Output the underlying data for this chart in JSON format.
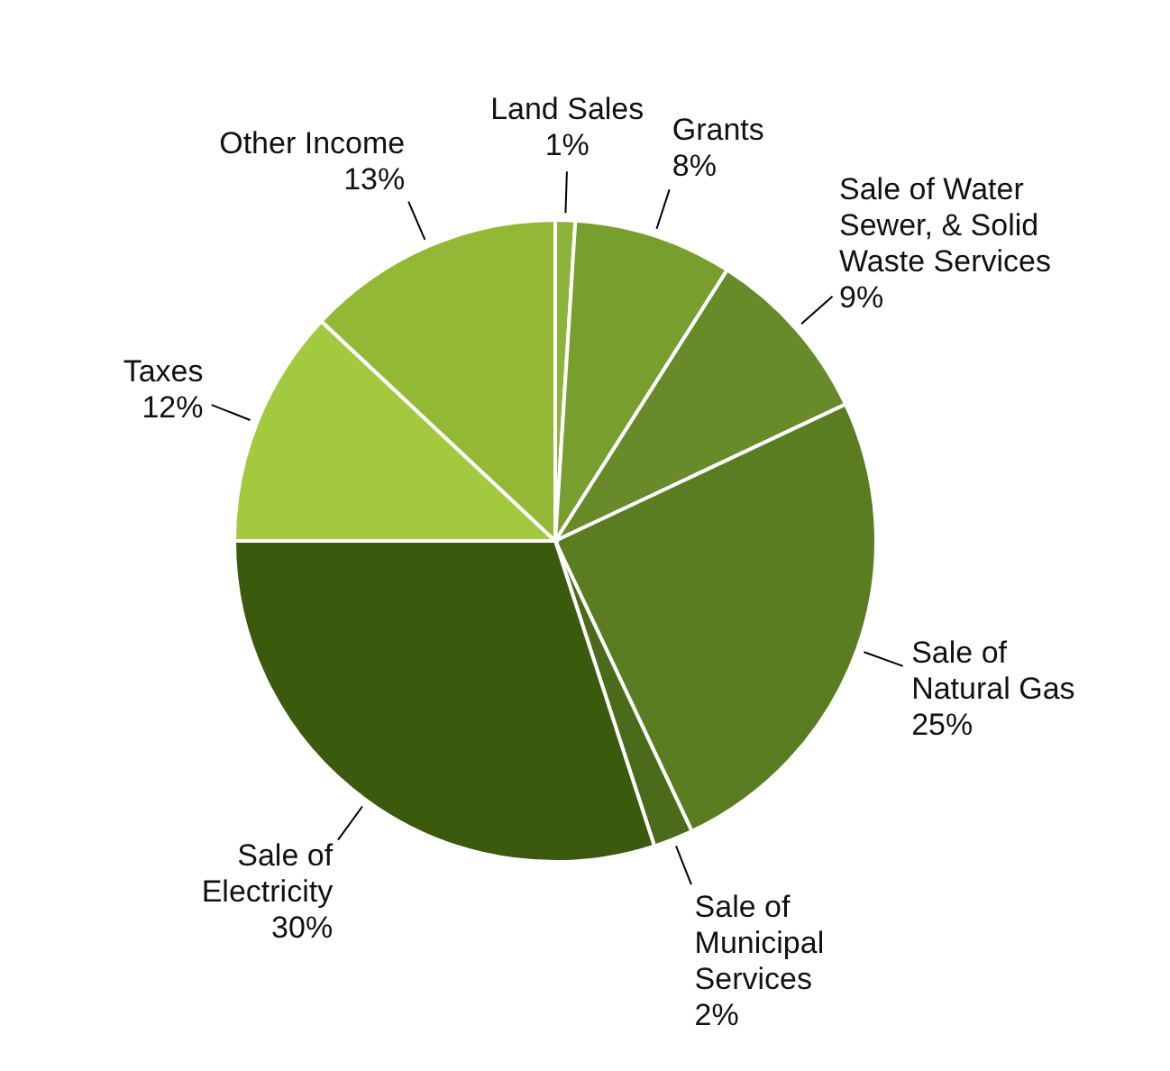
{
  "chart_data": {
    "type": "pie",
    "categories": [
      "Land Sales",
      "Grants",
      "Sale of Water Sewer, & Solid Waste Services",
      "Sale of Natural Gas",
      "Sale of Municipal Services",
      "Sale of Electricity",
      "Taxes",
      "Other Income"
    ],
    "values": [
      1,
      8,
      9,
      25,
      2,
      30,
      12,
      13
    ],
    "colors": [
      "#8db33a",
      "#789e2e",
      "#688a28",
      "#5a7d22",
      "#4b6a1a",
      "#3c5a0e",
      "#a3c93f",
      "#93b836"
    ],
    "value_labels": [
      "1%",
      "8%",
      "9%",
      "25%",
      "2%",
      "30%",
      "12%",
      "13%"
    ]
  }
}
